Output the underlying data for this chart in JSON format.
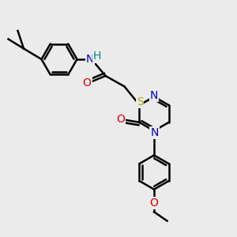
{
  "bg_color": "#ebebeb",
  "bond_color": "#000000",
  "bond_width": 1.8,
  "atom_colors": {
    "N": "#0000cc",
    "O": "#dd0000",
    "S": "#aaaa00",
    "H_on_N": "#008888",
    "C": "#000000"
  },
  "font_size_atoms": 10,
  "font_size_h": 10
}
